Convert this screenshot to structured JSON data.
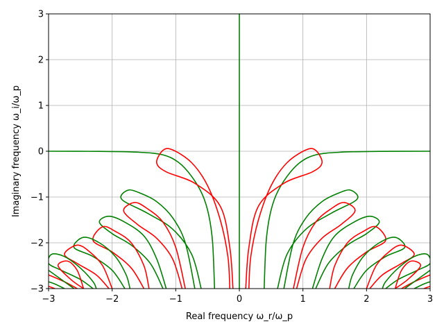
{
  "chart_data": {
    "type": "line",
    "title": "",
    "xlabel": "Real frequency ω_r/ω_p",
    "ylabel": "Imaginary frequency ω_i/ω_p",
    "xlim": [
      -3,
      3
    ],
    "ylim": [
      -3,
      3
    ],
    "x_ticks": [
      -3,
      -2,
      -1,
      0,
      1,
      2,
      3
    ],
    "y_ticks": [
      -3,
      -2,
      -1,
      0,
      1,
      2,
      3
    ],
    "x_tick_labels": [
      "−3",
      "−2",
      "−1",
      "0",
      "1",
      "2",
      "3"
    ],
    "y_tick_labels": [
      "−3",
      "−2",
      "−1",
      "0",
      "1",
      "2",
      "3"
    ],
    "grid": true,
    "colors": {
      "red_contours": "#ff0000",
      "green_contours": "#008000",
      "grid": "#b0b0b0"
    },
    "series": [
      {
        "color": "green",
        "points": [
          [
            0,
            -3
          ],
          [
            0,
            3
          ]
        ]
      },
      {
        "color": "green",
        "points": [
          [
            -3,
            0
          ],
          [
            -2.2,
            -0.003
          ],
          [
            -1.6,
            -0.02
          ],
          [
            -1.2,
            -0.08
          ],
          [
            -0.95,
            -0.25
          ],
          [
            -0.75,
            -0.55
          ],
          [
            -0.58,
            -0.95
          ],
          [
            -0.48,
            -1.4
          ],
          [
            -0.42,
            -2
          ],
          [
            -0.39,
            -3
          ]
        ]
      },
      {
        "color": "green",
        "points": [
          [
            3,
            0
          ],
          [
            2.2,
            -0.003
          ],
          [
            1.6,
            -0.02
          ],
          [
            1.2,
            -0.08
          ],
          [
            0.95,
            -0.25
          ],
          [
            0.75,
            -0.55
          ],
          [
            0.58,
            -0.95
          ],
          [
            0.48,
            -1.4
          ],
          [
            0.42,
            -2
          ],
          [
            0.39,
            -3
          ]
        ]
      },
      {
        "color": "red",
        "points": [
          [
            -0.1,
            -3
          ],
          [
            -0.15,
            -2.1
          ],
          [
            -0.3,
            -1.2
          ],
          [
            -0.7,
            -0.7
          ],
          [
            -1.15,
            -0.45
          ],
          [
            -1.3,
            -0.25
          ],
          [
            -1.2,
            0.02
          ],
          [
            -1.05,
            0.03
          ],
          [
            -0.75,
            -0.25
          ],
          [
            -0.5,
            -0.75
          ],
          [
            -0.3,
            -1.5
          ],
          [
            -0.18,
            -2.3
          ],
          [
            -0.15,
            -3
          ]
        ]
      },
      {
        "color": "red",
        "points": [
          [
            0.1,
            -3
          ],
          [
            0.15,
            -2.1
          ],
          [
            0.3,
            -1.2
          ],
          [
            0.7,
            -0.7
          ],
          [
            1.15,
            -0.45
          ],
          [
            1.3,
            -0.25
          ],
          [
            1.2,
            0.02
          ],
          [
            1.05,
            0.03
          ],
          [
            0.75,
            -0.25
          ],
          [
            0.5,
            -0.75
          ],
          [
            0.3,
            -1.5
          ],
          [
            0.18,
            -2.3
          ],
          [
            0.15,
            -3
          ]
        ]
      },
      {
        "color": "green",
        "points": [
          [
            -0.6,
            -3
          ],
          [
            -0.75,
            -2.25
          ],
          [
            -1.05,
            -1.7
          ],
          [
            -1.45,
            -1.35
          ],
          [
            -1.85,
            -1.05
          ],
          [
            -1.75,
            -0.85
          ],
          [
            -1.55,
            -0.92
          ],
          [
            -1.3,
            -1.1
          ],
          [
            -1.05,
            -1.45
          ],
          [
            -0.85,
            -2.0
          ],
          [
            -0.7,
            -3
          ]
        ]
      },
      {
        "color": "green",
        "points": [
          [
            0.6,
            -3
          ],
          [
            0.75,
            -2.25
          ],
          [
            1.05,
            -1.7
          ],
          [
            1.45,
            -1.35
          ],
          [
            1.85,
            -1.05
          ],
          [
            1.75,
            -0.85
          ],
          [
            1.55,
            -0.92
          ],
          [
            1.3,
            -1.1
          ],
          [
            1.05,
            -1.45
          ],
          [
            0.85,
            -2.0
          ],
          [
            0.7,
            -3
          ]
        ]
      },
      {
        "color": "red",
        "points": [
          [
            -0.9,
            -3
          ],
          [
            -1.05,
            -2.35
          ],
          [
            -1.3,
            -1.9
          ],
          [
            -1.6,
            -1.6
          ],
          [
            -1.82,
            -1.3
          ],
          [
            -1.65,
            -1.12
          ],
          [
            -1.45,
            -1.25
          ],
          [
            -1.2,
            -1.55
          ],
          [
            -1.0,
            -2.1
          ],
          [
            -0.85,
            -3
          ]
        ]
      },
      {
        "color": "red",
        "points": [
          [
            0.9,
            -3
          ],
          [
            1.05,
            -2.35
          ],
          [
            1.3,
            -1.9
          ],
          [
            1.6,
            -1.6
          ],
          [
            1.82,
            -1.3
          ],
          [
            1.65,
            -1.12
          ],
          [
            1.45,
            -1.25
          ],
          [
            1.2,
            -1.55
          ],
          [
            1.0,
            -2.1
          ],
          [
            0.85,
            -3
          ]
        ]
      },
      {
        "color": "green",
        "points": [
          [
            -1.2,
            -3
          ],
          [
            -1.4,
            -2.45
          ],
          [
            -1.7,
            -2.05
          ],
          [
            -2.0,
            -1.8
          ],
          [
            -2.2,
            -1.55
          ],
          [
            -2.05,
            -1.42
          ],
          [
            -1.8,
            -1.55
          ],
          [
            -1.5,
            -1.85
          ],
          [
            -1.3,
            -2.35
          ],
          [
            -1.15,
            -3
          ]
        ]
      },
      {
        "color": "green",
        "points": [
          [
            1.2,
            -3
          ],
          [
            1.4,
            -2.45
          ],
          [
            1.7,
            -2.05
          ],
          [
            2.0,
            -1.8
          ],
          [
            2.2,
            -1.55
          ],
          [
            2.05,
            -1.42
          ],
          [
            1.8,
            -1.55
          ],
          [
            1.5,
            -1.85
          ],
          [
            1.3,
            -2.35
          ],
          [
            1.15,
            -3
          ]
        ]
      },
      {
        "color": "red",
        "points": [
          [
            -1.5,
            -3
          ],
          [
            -1.7,
            -2.55
          ],
          [
            -2.0,
            -2.2
          ],
          [
            -2.3,
            -1.95
          ],
          [
            -2.15,
            -1.65
          ],
          [
            -1.95,
            -1.75
          ],
          [
            -1.7,
            -2.0
          ],
          [
            -1.5,
            -2.5
          ],
          [
            -1.42,
            -3
          ]
        ]
      },
      {
        "color": "red",
        "points": [
          [
            1.5,
            -3
          ],
          [
            1.7,
            -2.55
          ],
          [
            2.0,
            -2.2
          ],
          [
            2.3,
            -1.95
          ],
          [
            2.15,
            -1.65
          ],
          [
            1.95,
            -1.75
          ],
          [
            1.7,
            -2.0
          ],
          [
            1.5,
            -2.5
          ],
          [
            1.42,
            -3
          ]
        ]
      },
      {
        "color": "green",
        "points": [
          [
            -1.8,
            -3
          ],
          [
            -2.0,
            -2.6
          ],
          [
            -2.3,
            -2.3
          ],
          [
            -2.6,
            -2.1
          ],
          [
            -2.45,
            -1.88
          ],
          [
            -2.2,
            -2.0
          ],
          [
            -1.95,
            -2.3
          ],
          [
            -1.78,
            -2.7
          ],
          [
            -1.72,
            -3
          ]
        ]
      },
      {
        "color": "green",
        "points": [
          [
            1.8,
            -3
          ],
          [
            2.0,
            -2.6
          ],
          [
            2.3,
            -2.3
          ],
          [
            2.6,
            -2.1
          ],
          [
            2.45,
            -1.88
          ],
          [
            2.2,
            -2.0
          ],
          [
            1.95,
            -2.3
          ],
          [
            1.78,
            -2.7
          ],
          [
            1.72,
            -3
          ]
        ]
      },
      {
        "color": "red",
        "points": [
          [
            -2.05,
            -3
          ],
          [
            -2.25,
            -2.7
          ],
          [
            -2.55,
            -2.45
          ],
          [
            -2.75,
            -2.25
          ],
          [
            -2.55,
            -2.05
          ],
          [
            -2.35,
            -2.2
          ],
          [
            -2.15,
            -2.5
          ],
          [
            -2.0,
            -3
          ]
        ]
      },
      {
        "color": "red",
        "points": [
          [
            2.05,
            -3
          ],
          [
            2.25,
            -2.7
          ],
          [
            2.55,
            -2.45
          ],
          [
            2.75,
            -2.25
          ],
          [
            2.55,
            -2.05
          ],
          [
            2.35,
            -2.2
          ],
          [
            2.15,
            -2.5
          ],
          [
            2.0,
            -3
          ]
        ]
      },
      {
        "color": "green",
        "points": [
          [
            -2.3,
            -3
          ],
          [
            -2.5,
            -2.8
          ],
          [
            -2.8,
            -2.6
          ],
          [
            -3.0,
            -2.45
          ],
          [
            -2.95,
            -2.25
          ],
          [
            -2.75,
            -2.3
          ],
          [
            -2.5,
            -2.55
          ],
          [
            -2.3,
            -2.85
          ],
          [
            -2.25,
            -3
          ]
        ]
      },
      {
        "color": "green",
        "points": [
          [
            2.3,
            -3
          ],
          [
            2.5,
            -2.8
          ],
          [
            2.8,
            -2.6
          ],
          [
            3.0,
            -2.45
          ],
          [
            2.95,
            -2.25
          ],
          [
            2.75,
            -2.3
          ],
          [
            2.5,
            -2.55
          ],
          [
            2.3,
            -2.85
          ],
          [
            2.25,
            -3
          ]
        ]
      },
      {
        "color": "red",
        "points": [
          [
            -2.55,
            -3
          ],
          [
            -2.75,
            -2.85
          ],
          [
            -3.0,
            -2.7
          ]
        ]
      },
      {
        "color": "red",
        "points": [
          [
            2.55,
            -3
          ],
          [
            2.75,
            -2.85
          ],
          [
            3.0,
            -2.7
          ]
        ]
      },
      {
        "color": "red",
        "points": [
          [
            -2.45,
            -3
          ],
          [
            -2.65,
            -2.8
          ],
          [
            -2.85,
            -2.5
          ],
          [
            -2.7,
            -2.4
          ],
          [
            -2.55,
            -2.6
          ],
          [
            -2.45,
            -3
          ]
        ]
      },
      {
        "color": "red",
        "points": [
          [
            2.45,
            -3
          ],
          [
            2.65,
            -2.8
          ],
          [
            2.85,
            -2.5
          ],
          [
            2.7,
            -2.4
          ],
          [
            2.55,
            -2.6
          ],
          [
            2.45,
            -3
          ]
        ]
      },
      {
        "color": "green",
        "points": [
          [
            -2.75,
            -3
          ],
          [
            -2.9,
            -2.9
          ],
          [
            -3.0,
            -2.85
          ]
        ]
      },
      {
        "color": "green",
        "points": [
          [
            2.75,
            -3
          ],
          [
            2.9,
            -2.9
          ],
          [
            3.0,
            -2.85
          ]
        ]
      },
      {
        "color": "green",
        "points": [
          [
            -2.6,
            -3
          ],
          [
            -2.85,
            -2.75
          ],
          [
            -3.0,
            -2.6
          ]
        ]
      },
      {
        "color": "green",
        "points": [
          [
            2.6,
            -3
          ],
          [
            2.85,
            -2.75
          ],
          [
            3.0,
            -2.6
          ]
        ]
      },
      {
        "color": "red",
        "points": [
          [
            -2.9,
            -3
          ],
          [
            -3.0,
            -2.95
          ]
        ]
      },
      {
        "color": "red",
        "points": [
          [
            2.9,
            -3
          ],
          [
            3.0,
            -2.95
          ]
        ]
      }
    ]
  }
}
